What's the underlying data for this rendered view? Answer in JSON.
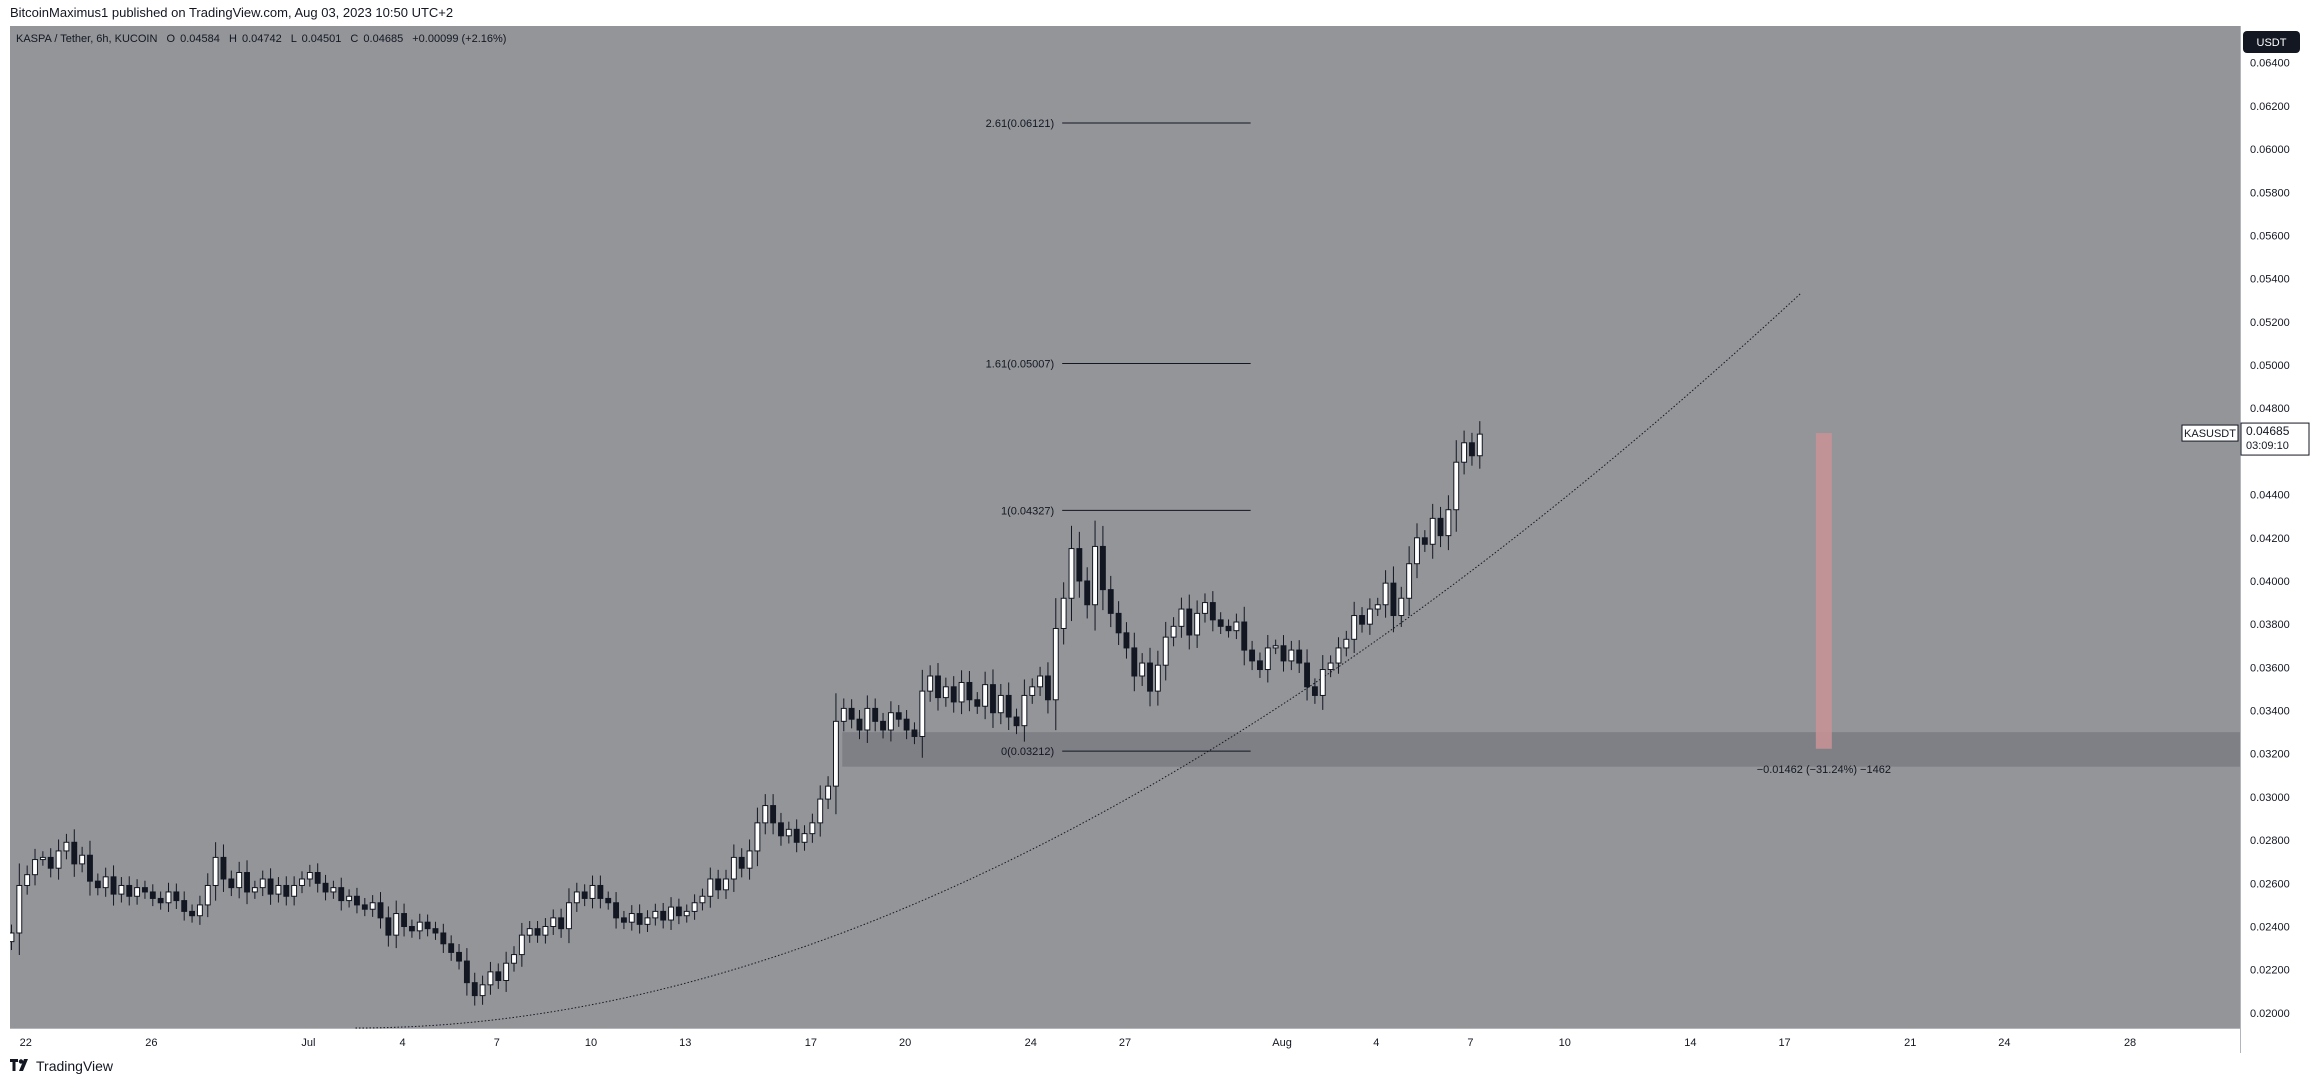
{
  "header": {
    "publisher_line": "BitcoinMaximus1 published on TradingView.com, Aug 03, 2023 10:50 UTC+2"
  },
  "footer": {
    "brand": "TradingView",
    "logo_icon": "tradingview-logo-icon"
  },
  "legend": {
    "symbol": "KASPA / Tether, 6h, KUCOIN",
    "open_label": "O",
    "open": "0.04584",
    "high_label": "H",
    "high": "0.04742",
    "low_label": "L",
    "low": "0.04501",
    "close_label": "C",
    "close": "0.04685",
    "change": "+0.00099 (+2.16%)"
  },
  "currency_button": "USDT",
  "price_tag": {
    "symbol": "KASUSDT",
    "price": "0.04685",
    "countdown": "03:09:10"
  },
  "colors": {
    "background": "#939599",
    "axis_bg": "#ffffff",
    "candle_up": "#ffffff",
    "candle_down": "#131722",
    "wick": "#131722",
    "support_zone": "#7b7d82",
    "measure_bar": "#c99396"
  },
  "chart_data": {
    "type": "candlestick",
    "y_axis": {
      "ylim": [
        0.0193,
        0.0657
      ],
      "ticks": [
        "0.02000",
        "0.02200",
        "0.02400",
        "0.02600",
        "0.02800",
        "0.03000",
        "0.03200",
        "0.03400",
        "0.03600",
        "0.03800",
        "0.04000",
        "0.04200",
        "0.04400",
        "0.04600",
        "0.04800",
        "0.05000",
        "0.05200",
        "0.05400",
        "0.05600",
        "0.05800",
        "0.06000",
        "0.06200",
        "0.06400"
      ]
    },
    "x_axis": {
      "start": "2023-06-21T12:00",
      "end": "2023-08-31T12:00",
      "ticks": [
        {
          "label": "22",
          "date": "2023-06-22"
        },
        {
          "label": "26",
          "date": "2023-06-26"
        },
        {
          "label": "Jul",
          "date": "2023-07-01"
        },
        {
          "label": "4",
          "date": "2023-07-04"
        },
        {
          "label": "7",
          "date": "2023-07-07"
        },
        {
          "label": "10",
          "date": "2023-07-10"
        },
        {
          "label": "13",
          "date": "2023-07-13"
        },
        {
          "label": "17",
          "date": "2023-07-17"
        },
        {
          "label": "20",
          "date": "2023-07-20"
        },
        {
          "label": "24",
          "date": "2023-07-24"
        },
        {
          "label": "27",
          "date": "2023-07-27"
        },
        {
          "label": "Aug",
          "date": "2023-08-01"
        },
        {
          "label": "4",
          "date": "2023-08-04"
        },
        {
          "label": "7",
          "date": "2023-08-07"
        },
        {
          "label": "10",
          "date": "2023-08-10"
        },
        {
          "label": "14",
          "date": "2023-08-14"
        },
        {
          "label": "17",
          "date": "2023-08-17"
        },
        {
          "label": "21",
          "date": "2023-08-21"
        },
        {
          "label": "24",
          "date": "2023-08-24"
        },
        {
          "label": "28",
          "date": "2023-08-28"
        }
      ]
    },
    "candles_start": "2023-06-21T12:00",
    "candle_period_hours": 6,
    "closes": [
      0.0237,
      0.0259,
      0.0264,
      0.0271,
      0.0272,
      0.0267,
      0.0275,
      0.0279,
      0.0269,
      0.0273,
      0.0261,
      0.0258,
      0.0263,
      0.0255,
      0.0259,
      0.0254,
      0.0258,
      0.0256,
      0.0253,
      0.0251,
      0.0256,
      0.0252,
      0.0247,
      0.0245,
      0.025,
      0.0259,
      0.0272,
      0.0262,
      0.0258,
      0.0265,
      0.0256,
      0.0258,
      0.0262,
      0.0255,
      0.0259,
      0.0254,
      0.0259,
      0.0262,
      0.0265,
      0.026,
      0.0256,
      0.0258,
      0.0252,
      0.0254,
      0.025,
      0.0248,
      0.0251,
      0.0244,
      0.0236,
      0.0246,
      0.024,
      0.0238,
      0.0242,
      0.0239,
      0.0237,
      0.0232,
      0.0228,
      0.0224,
      0.0214,
      0.0208,
      0.0213,
      0.0219,
      0.0215,
      0.0223,
      0.0227,
      0.0236,
      0.0239,
      0.0236,
      0.024,
      0.0244,
      0.0239,
      0.0251,
      0.0256,
      0.0253,
      0.0259,
      0.0253,
      0.0251,
      0.0244,
      0.0242,
      0.0246,
      0.0241,
      0.0244,
      0.0247,
      0.0243,
      0.0249,
      0.0245,
      0.0247,
      0.0251,
      0.0254,
      0.0262,
      0.0257,
      0.0262,
      0.0272,
      0.0267,
      0.0275,
      0.0288,
      0.0296,
      0.0288,
      0.0282,
      0.0285,
      0.0279,
      0.0283,
      0.0288,
      0.0299,
      0.0305,
      0.0335,
      0.0341,
      0.0336,
      0.0331,
      0.0341,
      0.0335,
      0.0331,
      0.0339,
      0.0336,
      0.0331,
      0.0328,
      0.0349,
      0.0356,
      0.0346,
      0.0351,
      0.0344,
      0.0353,
      0.0345,
      0.0342,
      0.0352,
      0.0339,
      0.0347,
      0.0337,
      0.0333,
      0.0347,
      0.0351,
      0.0356,
      0.0345,
      0.0378,
      0.0392,
      0.0415,
      0.04,
      0.0389,
      0.0416,
      0.0396,
      0.0385,
      0.0376,
      0.0369,
      0.0356,
      0.0362,
      0.0349,
      0.0361,
      0.0374,
      0.0379,
      0.0387,
      0.0375,
      0.0385,
      0.039,
      0.0382,
      0.0379,
      0.0377,
      0.0381,
      0.0368,
      0.0363,
      0.0359,
      0.0369,
      0.037,
      0.0363,
      0.0368,
      0.0362,
      0.0351,
      0.0347,
      0.0359,
      0.0362,
      0.0369,
      0.0373,
      0.0384,
      0.038,
      0.0387,
      0.0389,
      0.0399,
      0.0384,
      0.0392,
      0.0408,
      0.042,
      0.0417,
      0.0429,
      0.0421,
      0.0433,
      0.0455,
      0.0464,
      0.0458,
      0.0468
    ],
    "current_price": 0.04685,
    "fibonacci_levels": [
      {
        "ratio": "2.61",
        "price": 0.06121,
        "label": "2.61(0.06121)"
      },
      {
        "ratio": "1.61",
        "price": 0.05007,
        "label": "1.61(0.05007)"
      },
      {
        "ratio": "1",
        "price": 0.04327,
        "label": "1(0.04327)"
      },
      {
        "ratio": "0",
        "price": 0.03212,
        "label": "0(0.03212)"
      }
    ],
    "fibonacci_x_range": [
      "2023-07-25T00:00",
      "2023-07-31T00:00"
    ],
    "support_zone": {
      "from": "2023-07-18T00:00",
      "to": "2023-08-31T12:00",
      "low": 0.0314,
      "high": 0.033
    },
    "parabolic_curve": {
      "start": [
        "2023-07-02T12:00",
        0.0193
      ],
      "end": [
        "2023-08-17T12:00",
        0.0533
      ]
    },
    "measurement": {
      "date": "2023-08-18T06:00",
      "top": 0.04685,
      "bottom": 0.03223,
      "label": "−0.01462 (−31.24%) −1462"
    }
  }
}
